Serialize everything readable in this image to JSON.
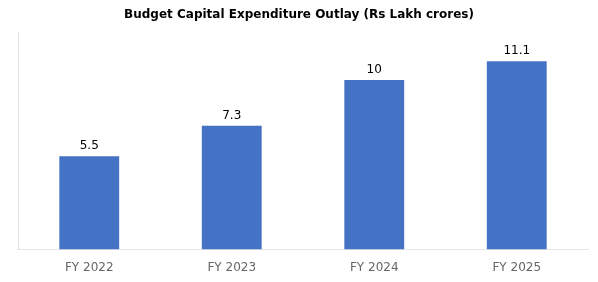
{
  "chart_data": {
    "type": "bar",
    "title": "Budget Capital Expenditure Outlay (Rs Lakh crores)",
    "categories": [
      "FY 2022",
      "FY 2023",
      "FY 2024",
      "FY 2025"
    ],
    "values": [
      5.5,
      7.3,
      10.0,
      11.1
    ],
    "color": "#4472C4",
    "ylim": [
      0,
      12.8
    ],
    "grid": false,
    "data_labels": true,
    "tick_labels": "x"
  }
}
